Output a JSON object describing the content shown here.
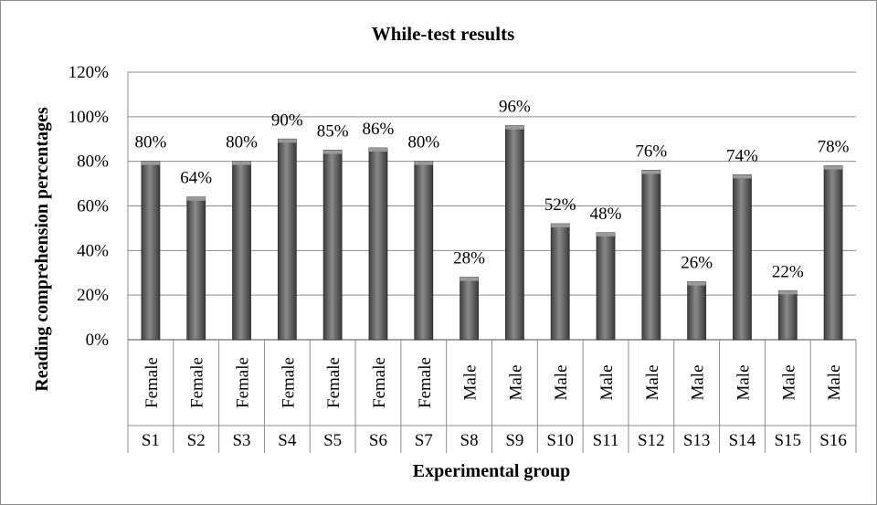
{
  "chart_data": {
    "type": "bar",
    "title": "While-test results",
    "xlabel": "Experimental group",
    "ylabel": "Reading comprehension percentages",
    "ylim": [
      0,
      120
    ],
    "ytick_step": 20,
    "ytick_labels": [
      "0%",
      "20%",
      "40%",
      "60%",
      "80%",
      "100%",
      "120%"
    ],
    "grid": true,
    "legend": "none",
    "categories": [
      "S1",
      "S2",
      "S3",
      "S4",
      "S5",
      "S6",
      "S7",
      "S8",
      "S9",
      "S10",
      "S11",
      "S12",
      "S13",
      "S14",
      "S15",
      "S16"
    ],
    "genders": [
      "Female",
      "Female",
      "Female",
      "Female",
      "Female",
      "Female",
      "Female",
      "Male",
      "Male",
      "Male",
      "Male",
      "Male",
      "Male",
      "Male",
      "Male",
      "Male"
    ],
    "values": [
      80,
      64,
      80,
      90,
      85,
      86,
      80,
      28,
      96,
      52,
      48,
      76,
      26,
      74,
      22,
      78
    ],
    "data_labels": [
      "80%",
      "64%",
      "80%",
      "90%",
      "85%",
      "86%",
      "80%",
      "28%",
      "96%",
      "52%",
      "48%",
      "76%",
      "26%",
      "74%",
      "22%",
      "78%"
    ],
    "colors": {
      "bar": "#555555",
      "bar_light": "#8a8a8a",
      "grid": "#8c8c8c",
      "text": "#000000"
    }
  }
}
